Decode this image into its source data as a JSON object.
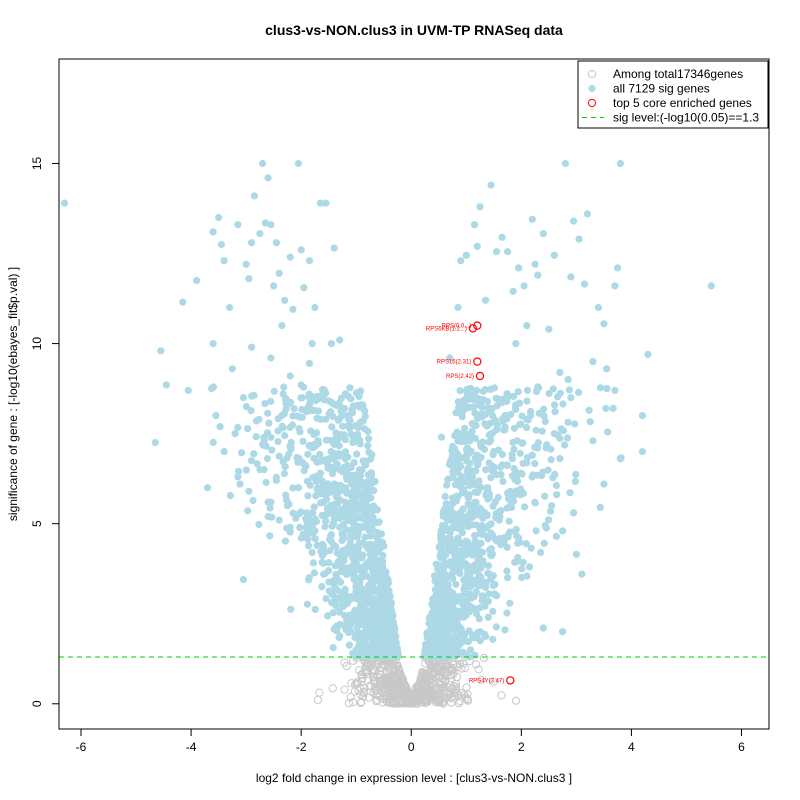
{
  "chart_data": {
    "type": "scatter",
    "title": "clus3-vs-NON.clus3 in UVM-TP RNASeq data",
    "xlabel": "log2 fold change in expression level : [clus3-vs-NON.clus3 ]",
    "ylabel": "significance of gene : [-log10(ebayes_fit$p.val) ]",
    "xlim": [
      -6.4,
      6.5
    ],
    "ylim": [
      -0.7,
      17.9
    ],
    "x_ticks": [
      "-6",
      "-4",
      "-2",
      "0",
      "2",
      "4",
      "6"
    ],
    "y_ticks": [
      "0",
      "5",
      "10",
      "15"
    ],
    "grid": false,
    "legend": {
      "position": "top-right",
      "entries": [
        {
          "label": "Among total17346genes",
          "marker": "open-circle",
          "color": "#c8c8c8"
        },
        {
          "label": "all 7129 sig genes",
          "marker": "filled-circle",
          "color": "#add8e6"
        },
        {
          "label": "top 5 core enriched genes",
          "marker": "open-circle",
          "color": "#ff0000"
        },
        {
          "label": "sig level:(-log10(0.05)==1.3",
          "marker": "dashed-line",
          "color": "#00cc00"
        }
      ]
    },
    "sig_line_y": 1.3,
    "colors": {
      "nonsig": "#c8c8c8",
      "sig": "#add8e6",
      "top": "#ff0000",
      "sig_line": "#00cc00"
    },
    "sig_points": [
      [
        -6.3,
        13.9
      ],
      [
        -4.65,
        7.25
      ],
      [
        -4.55,
        9.8
      ],
      [
        -4.45,
        8.85
      ],
      [
        -4.15,
        11.15
      ],
      [
        -4.05,
        8.7
      ],
      [
        -3.9,
        11.75
      ],
      [
        -3.7,
        6.0
      ],
      [
        -3.6,
        13.1
      ],
      [
        -3.55,
        8.0
      ],
      [
        -3.5,
        13.5
      ],
      [
        -3.45,
        12.75
      ],
      [
        -3.4,
        12.3
      ],
      [
        -3.3,
        11.0
      ],
      [
        -3.2,
        7.5
      ],
      [
        -3.15,
        13.3
      ],
      [
        -3.05,
        3.45
      ],
      [
        -3.0,
        12.2
      ],
      [
        -2.95,
        11.8
      ],
      [
        -2.9,
        12.8
      ],
      [
        -2.85,
        14.1
      ],
      [
        -2.75,
        13.05
      ],
      [
        -2.7,
        15.0
      ],
      [
        -2.65,
        13.35
      ],
      [
        -2.6,
        14.6
      ],
      [
        -2.55,
        13.3
      ],
      [
        -2.5,
        11.6
      ],
      [
        -2.45,
        12.8
      ],
      [
        -2.4,
        11.95
      ],
      [
        -2.35,
        10.5
      ],
      [
        -2.3,
        11.2
      ],
      [
        -2.25,
        8.3
      ],
      [
        -2.2,
        12.4
      ],
      [
        -2.15,
        10.95
      ],
      [
        -2.05,
        15.0
      ],
      [
        -2.0,
        12.6
      ],
      [
        -1.95,
        11.55
      ],
      [
        -1.85,
        12.3
      ],
      [
        -1.8,
        10.0
      ],
      [
        -1.75,
        11.0
      ],
      [
        -1.65,
        13.9
      ],
      [
        -1.55,
        13.9
      ],
      [
        -1.45,
        10.0
      ],
      [
        -1.4,
        12.65
      ],
      [
        -1.3,
        10.1
      ],
      [
        -1.25,
        8.2
      ],
      [
        -3.6,
        10.0
      ],
      [
        -3.25,
        9.3
      ],
      [
        -3.05,
        8.5
      ],
      [
        -2.9,
        9.9
      ],
      [
        -2.7,
        7.2
      ],
      [
        -2.55,
        9.6
      ],
      [
        -2.35,
        8.0
      ],
      [
        -2.2,
        9.1
      ],
      [
        -2.0,
        8.85
      ],
      [
        -1.85,
        9.45
      ],
      [
        -1.7,
        8.5
      ],
      [
        -1.55,
        7.9
      ],
      [
        -1.4,
        7.2
      ],
      [
        -1.2,
        6.8
      ],
      [
        -3.4,
        7.0
      ],
      [
        -3.15,
        6.3
      ],
      [
        -2.95,
        5.9
      ],
      [
        -2.75,
        6.5
      ],
      [
        -2.6,
        5.2
      ],
      [
        -2.45,
        6.2
      ],
      [
        -2.25,
        5.5
      ],
      [
        -2.05,
        6.0
      ],
      [
        -1.9,
        5.3
      ],
      [
        -1.75,
        4.8
      ],
      [
        -1.6,
        5.6
      ],
      [
        -1.45,
        4.5
      ],
      [
        -1.3,
        4.9
      ],
      [
        -1.15,
        4.2
      ],
      [
        -1.05,
        3.6
      ],
      [
        -0.95,
        3.0
      ],
      [
        -0.85,
        2.5
      ],
      [
        -0.75,
        2.0
      ],
      [
        -0.65,
        1.7
      ],
      [
        -0.55,
        1.45
      ],
      [
        -1.1,
        2.2
      ],
      [
        -1.25,
        2.7
      ],
      [
        -1.4,
        3.3
      ],
      [
        -1.6,
        3.9
      ],
      [
        -1.8,
        4.2
      ],
      [
        -2.0,
        4.6
      ],
      [
        -2.2,
        4.9
      ],
      [
        -2.4,
        5.1
      ],
      [
        -2.6,
        5.6
      ],
      [
        -1.0,
        1.5
      ],
      [
        5.45,
        11.6
      ],
      [
        4.3,
        9.7
      ],
      [
        4.2,
        8.0
      ],
      [
        4.2,
        7.0
      ],
      [
        3.8,
        15.0
      ],
      [
        3.75,
        12.1
      ],
      [
        3.7,
        11.6
      ],
      [
        3.7,
        8.7
      ],
      [
        3.55,
        9.3
      ],
      [
        3.5,
        10.55
      ],
      [
        3.4,
        11.0
      ],
      [
        3.3,
        9.5
      ],
      [
        3.2,
        13.6
      ],
      [
        3.15,
        11.65
      ],
      [
        3.05,
        12.9
      ],
      [
        3.0,
        4.15
      ],
      [
        2.95,
        13.4
      ],
      [
        2.9,
        11.85
      ],
      [
        2.85,
        9.0
      ],
      [
        2.8,
        15.0
      ],
      [
        2.75,
        2.0
      ],
      [
        2.7,
        9.2
      ],
      [
        2.6,
        12.45
      ],
      [
        2.5,
        10.4
      ],
      [
        2.4,
        13.05
      ],
      [
        2.3,
        11.9
      ],
      [
        2.25,
        12.2
      ],
      [
        2.2,
        13.45
      ],
      [
        2.1,
        10.5
      ],
      [
        2.05,
        11.6
      ],
      [
        1.95,
        12.1
      ],
      [
        1.9,
        10.0
      ],
      [
        1.85,
        11.45
      ],
      [
        1.75,
        12.55
      ],
      [
        1.65,
        12.95
      ],
      [
        1.55,
        12.55
      ],
      [
        1.45,
        14.4
      ],
      [
        1.35,
        11.2
      ],
      [
        1.25,
        13.8
      ],
      [
        1.2,
        12.7
      ],
      [
        1.15,
        13.3
      ],
      [
        1.0,
        12.45
      ],
      [
        0.9,
        12.3
      ],
      [
        0.85,
        11.0
      ],
      [
        2.4,
        2.1
      ],
      [
        3.3,
        7.3
      ],
      [
        3.5,
        6.1
      ],
      [
        3.8,
        6.8
      ],
      [
        2.9,
        8.5
      ],
      [
        2.6,
        7.5
      ],
      [
        2.3,
        8.8
      ],
      [
        2.1,
        7.9
      ],
      [
        1.9,
        8.3
      ],
      [
        1.7,
        7.6
      ],
      [
        1.5,
        7.0
      ],
      [
        1.35,
        6.5
      ],
      [
        1.2,
        6.9
      ],
      [
        1.05,
        5.8
      ],
      [
        0.95,
        5.2
      ],
      [
        0.85,
        4.6
      ],
      [
        0.75,
        3.9
      ],
      [
        0.65,
        3.2
      ],
      [
        0.55,
        2.6
      ],
      [
        0.45,
        2.0
      ],
      [
        0.35,
        1.5
      ],
      [
        2.55,
        5.5
      ],
      [
        2.75,
        4.8
      ],
      [
        2.95,
        5.3
      ],
      [
        3.1,
        3.6
      ],
      [
        2.35,
        4.2
      ],
      [
        2.15,
        3.8
      ],
      [
        1.95,
        4.6
      ],
      [
        1.75,
        3.5
      ],
      [
        1.55,
        3.0
      ],
      [
        1.4,
        2.4
      ],
      [
        1.25,
        2.0
      ],
      [
        1.6,
        5.1
      ],
      [
        1.8,
        5.9
      ],
      [
        2.0,
        6.4
      ],
      [
        2.2,
        6.9
      ],
      [
        2.45,
        7.1
      ],
      [
        0.7,
        9.6
      ],
      [
        0.55,
        7.4
      ],
      [
        1.0,
        8.7
      ]
    ],
    "top_genes": [
      {
        "name": "RPS(0.02)",
        "label": "RPS(0.0...)",
        "x": 1.2,
        "y": 10.5
      },
      {
        "name": "RPS6KB",
        "label": "RPS6KB(1.2...)",
        "x": 1.12,
        "y": 10.42
      },
      {
        "name": "RPS(1.6)",
        "label": "RPS16(2.31)",
        "x": 1.2,
        "y": 9.5
      },
      {
        "name": "RPS",
        "label": "RPS(2.42)",
        "x": 1.25,
        "y": 9.1
      },
      {
        "name": "RPS4Y",
        "label": "RPS4Y(3.47)",
        "x": 1.8,
        "y": 0.65
      }
    ]
  }
}
